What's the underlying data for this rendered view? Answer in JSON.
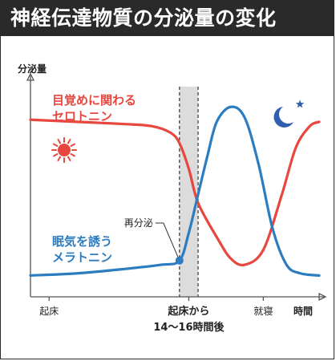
{
  "title": "神経伝達物質の分泌量の変化",
  "colors": {
    "serotonin": "#e8473f",
    "melatonin": "#2b7cc0",
    "band": "#dcdcdc",
    "axis": "#555555",
    "text": "#222222"
  },
  "icons": {
    "sun": "sun-icon",
    "moon": "moon-icon",
    "star": "star-icon"
  },
  "chart_data": {
    "type": "line",
    "ylabel": "分泌量",
    "xlabel": "時間",
    "x_ticks": [
      {
        "label": "起床",
        "x": 0
      },
      {
        "label": "起床から\n14～16時間後",
        "x": 15
      },
      {
        "label": "就寝",
        "x": 23
      }
    ],
    "highlight_band": [
      14,
      16
    ],
    "xlim": [
      -2,
      29
    ],
    "ylim": [
      0,
      100
    ],
    "series": [
      {
        "name": "目覚めに関わる\nセロトニン",
        "points": [
          [
            -2,
            83
          ],
          [
            3,
            82
          ],
          [
            8,
            81
          ],
          [
            11,
            80
          ],
          [
            13,
            77
          ],
          [
            14,
            72
          ],
          [
            15,
            60
          ],
          [
            16,
            44
          ],
          [
            18,
            28
          ],
          [
            19.5,
            18
          ],
          [
            21,
            15
          ],
          [
            23,
            22
          ],
          [
            25,
            48
          ],
          [
            26.5,
            70
          ],
          [
            28,
            80
          ],
          [
            29,
            82
          ]
        ]
      },
      {
        "name": "眠気を誘う\nメラトニン",
        "points": [
          [
            -2,
            10
          ],
          [
            3,
            11
          ],
          [
            8,
            13
          ],
          [
            12,
            15
          ],
          [
            14,
            17
          ],
          [
            15,
            30
          ],
          [
            16,
            48
          ],
          [
            17,
            66
          ],
          [
            18,
            82
          ],
          [
            19.5,
            89
          ],
          [
            21,
            84
          ],
          [
            22.5,
            62
          ],
          [
            24,
            32
          ],
          [
            25.5,
            15
          ],
          [
            27,
            11
          ],
          [
            29,
            10
          ]
        ]
      }
    ],
    "annotations": [
      {
        "text": "再分泌",
        "x": 14,
        "y": 17
      }
    ]
  }
}
